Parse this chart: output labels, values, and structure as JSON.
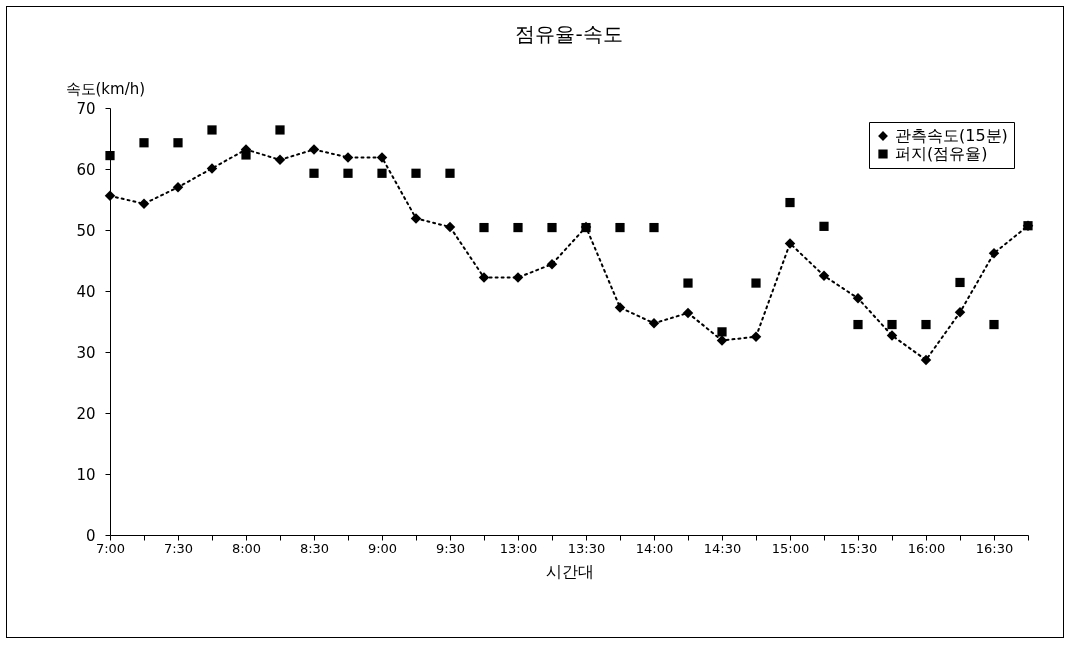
{
  "chart_data": {
    "type": "line",
    "title": "점유율-속도",
    "xlabel": "시간대",
    "ylabel": "속도(km/h)",
    "categories": [
      "7:00",
      null,
      "7:30",
      null,
      "8:00",
      null,
      "8:30",
      null,
      "9:00",
      null,
      "9:30",
      null,
      "13:00",
      null,
      "13:30",
      null,
      "14:00",
      null,
      "14:30",
      null,
      "15:00",
      null,
      "15:30",
      null,
      "16:00",
      null,
      "16:30",
      null
    ],
    "series": [
      {
        "name": "관측속도(15분)",
        "color": "#000000",
        "marker": "diamond",
        "line_style": "dotted",
        "values": [
          55.6,
          54.3,
          57.0,
          60.1,
          63.2,
          61.5,
          63.2,
          61.9,
          61.9,
          51.9,
          50.5,
          42.2,
          42.2,
          44.4,
          50.5,
          37.3,
          34.7,
          36.4,
          31.9,
          32.5,
          47.8,
          42.5,
          38.8,
          32.7,
          28.7,
          36.5,
          46.2,
          50.7
        ]
      },
      {
        "name": "퍼지(점유율)",
        "type": "scatter",
        "color": "#000000",
        "marker": "square",
        "values": [
          62.2,
          64.3,
          64.3,
          66.4,
          62.3,
          66.4,
          59.3,
          59.3,
          59.3,
          59.3,
          59.3,
          50.4,
          50.4,
          50.4,
          50.4,
          50.4,
          50.4,
          41.3,
          33.3,
          41.3,
          54.5,
          50.6,
          34.5,
          34.5,
          34.5,
          41.4,
          34.5,
          50.7
        ]
      }
    ],
    "ylim": [
      0,
      70
    ],
    "yticks": [
      0,
      10,
      20,
      30,
      40,
      50,
      60,
      70
    ],
    "grid": false,
    "legend": "top right"
  }
}
